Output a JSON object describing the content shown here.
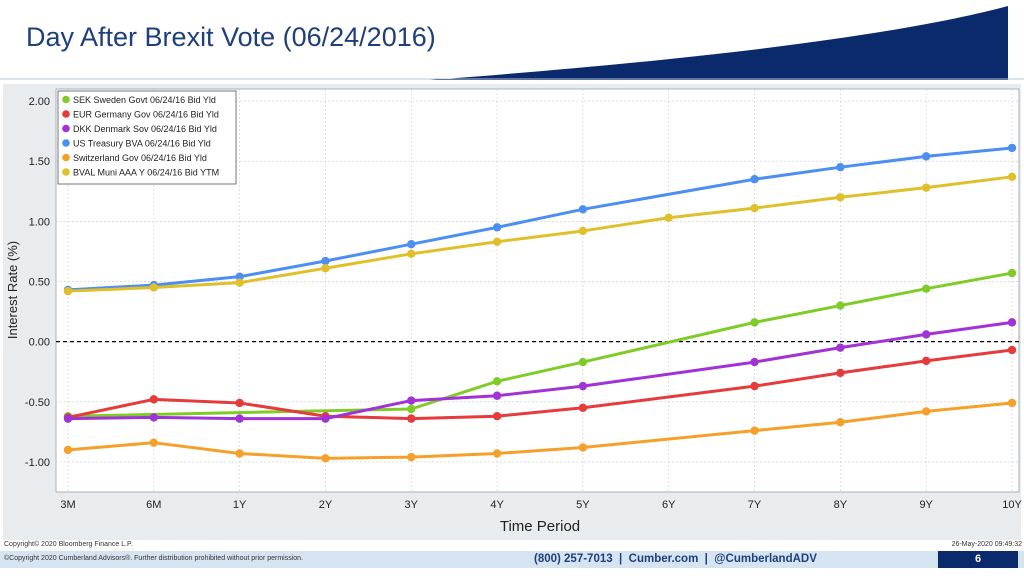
{
  "slide": {
    "title": "Day After Brexit Vote (06/24/2016)",
    "accent_color": "#0a2a6b"
  },
  "footer": {
    "copyright_bloomberg": "Copyright© 2020 Bloomberg Finance L.P.",
    "timestamp": "26-May-2020 09:49:32",
    "copyright_cumberland": "©Copyright 2020 Cumberland Advisors®. Further distribution prohibited without prior permission.",
    "contact": "(800) 257-7013  |  Cumber.com  |  @CumberlandADV",
    "page_number": "6"
  },
  "chart_data": {
    "type": "line",
    "xlabel": "Time Period",
    "ylabel": "Interest Rate (%)",
    "categories": [
      "3M",
      "6M",
      "1Y",
      "2Y",
      "3Y",
      "4Y",
      "5Y",
      "6Y",
      "7Y",
      "8Y",
      "9Y",
      "10Y"
    ],
    "ylim": [
      -1.25,
      2.1
    ],
    "yticks": [
      2.0,
      1.5,
      1.0,
      0.5,
      0.0,
      -0.5,
      -1.0
    ],
    "ytick_labels": [
      "2.00",
      "1.50",
      "1.00",
      "0.50",
      "0.00",
      "-0.50",
      "-1.00"
    ],
    "grid": true,
    "zero_line": "dashed",
    "legend_position": "top-left",
    "series": [
      {
        "name": "SEK Sweden Govt 06/24/16 Bid Yld",
        "color": "#7fcc28",
        "values": [
          -0.62,
          null,
          null,
          null,
          -0.56,
          -0.33,
          -0.17,
          null,
          0.16,
          0.3,
          0.44,
          0.57
        ]
      },
      {
        "name": "EUR Germany Gov 06/24/16 Bid Yld",
        "color": "#e63b3b",
        "values": [
          -0.63,
          -0.48,
          -0.51,
          -0.62,
          -0.64,
          -0.62,
          -0.55,
          null,
          -0.37,
          -0.26,
          -0.16,
          -0.07
        ]
      },
      {
        "name": "DKK Denmark Sov 06/24/16 Bid Yld",
        "color": "#a033d6",
        "values": [
          -0.64,
          -0.63,
          -0.64,
          -0.64,
          -0.49,
          -0.45,
          -0.37,
          null,
          -0.17,
          -0.05,
          0.06,
          0.16
        ]
      },
      {
        "name": "US Treasury BVA 06/24/16 Bid Yld",
        "color": "#4d8ff0",
        "values": [
          0.43,
          0.47,
          0.54,
          0.67,
          0.81,
          0.95,
          1.1,
          null,
          1.35,
          1.45,
          1.54,
          1.61
        ]
      },
      {
        "name": "Switzerland Gov 06/24/16 Bid Yld",
        "color": "#f5a02a",
        "values": [
          -0.9,
          -0.84,
          -0.93,
          -0.97,
          -0.96,
          -0.93,
          -0.88,
          null,
          -0.74,
          -0.67,
          -0.58,
          -0.51
        ]
      },
      {
        "name": "BVAL Muni AAA Y 06/24/16 Bid YTM",
        "color": "#e0c02a",
        "values": [
          0.42,
          0.45,
          0.49,
          0.61,
          0.73,
          0.83,
          0.92,
          1.03,
          1.11,
          1.2,
          1.28,
          1.37
        ]
      }
    ]
  }
}
